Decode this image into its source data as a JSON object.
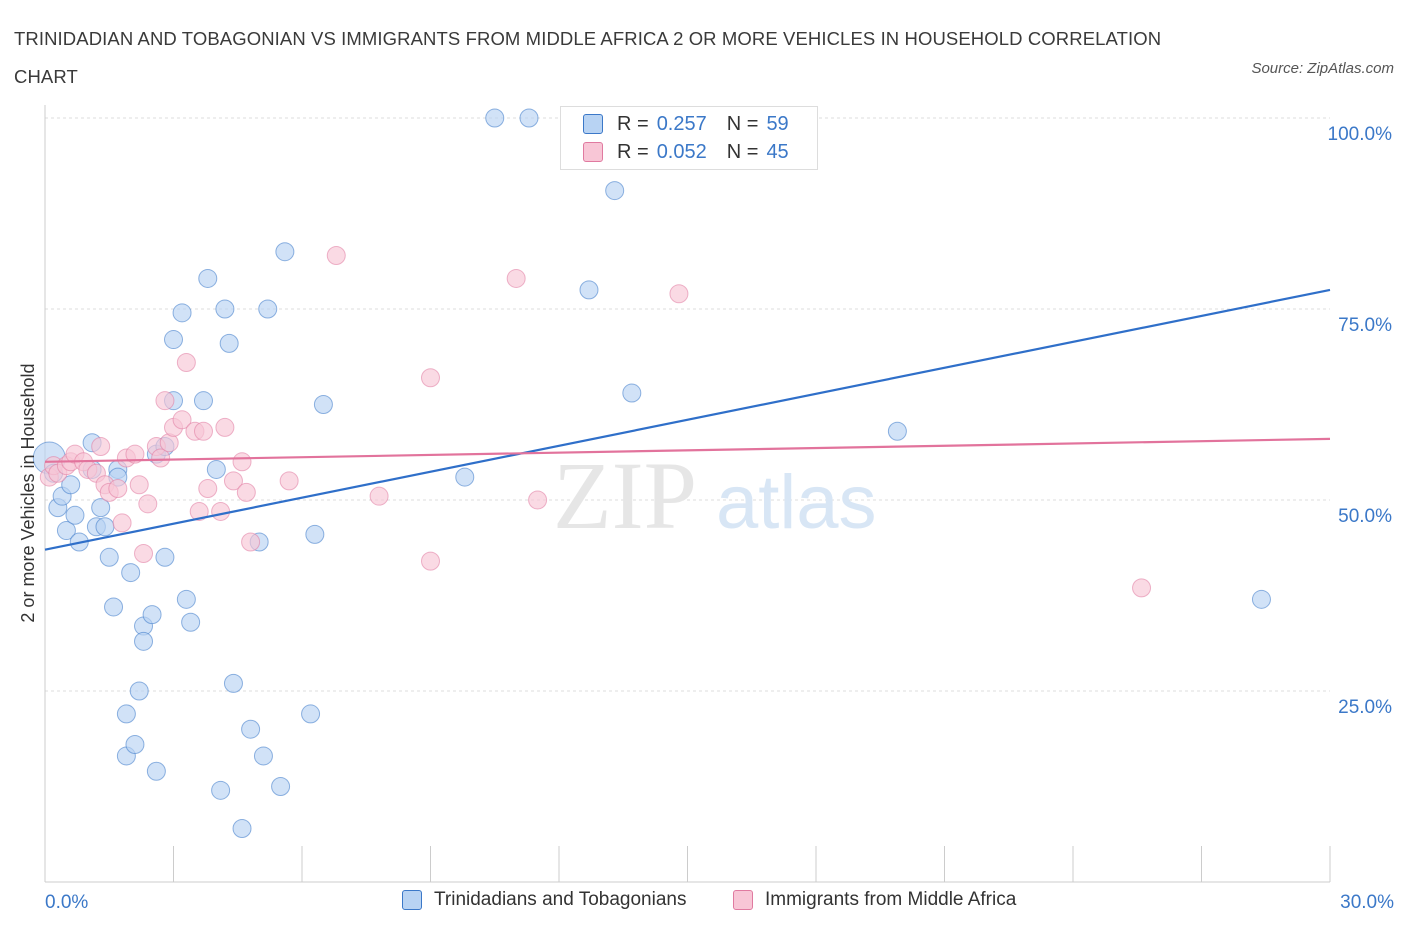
{
  "title": "TRINIDADIAN AND TOBAGONIAN VS IMMIGRANTS FROM MIDDLE AFRICA 2 OR MORE VEHICLES IN HOUSEHOLD CORRELATION CHART",
  "source": "Source: ZipAtlas.com",
  "watermark": {
    "zip": "ZIP",
    "atlas": "atlas"
  },
  "legend": {
    "r_label": "R =",
    "n_label": "N =",
    "series1": {
      "r": "0.257",
      "n": "59"
    },
    "series2": {
      "r": "0.052",
      "n": "45"
    }
  },
  "colors": {
    "blue": "#3b78c8",
    "blue_fill": "#b8d3f3",
    "pink": "#e07aa0",
    "pink_fill": "#f8c6d6",
    "grid": "#dddddd"
  },
  "chart_data": {
    "type": "scatter",
    "title": "TRINIDADIAN AND TOBAGONIAN VS IMMIGRANTS FROM MIDDLE AFRICA 2 OR MORE VEHICLES IN HOUSEHOLD CORRELATION CHART",
    "xlabel": "",
    "ylabel": "2 or more Vehicles in Household",
    "xlim": [
      0,
      30
    ],
    "ylim": [
      0,
      100
    ],
    "x_tick_labels": [
      "0.0%",
      "30.0%"
    ],
    "y_ticks": [
      25,
      50,
      75,
      100
    ],
    "y_tick_labels": [
      "25.0%",
      "50.0%",
      "75.0%",
      "100.0%"
    ],
    "grid": true,
    "series": [
      {
        "name": "Trinidadians and Tobagonians",
        "color": "#3b78c8",
        "trend": [
          [
            0,
            43.5
          ],
          [
            30,
            77.5
          ]
        ],
        "points": [
          [
            0.1,
            55.5
          ],
          [
            0.2,
            53.5
          ],
          [
            0.3,
            49.0
          ],
          [
            0.4,
            50.5
          ],
          [
            0.6,
            52.0
          ],
          [
            0.5,
            46.0
          ],
          [
            0.7,
            48.0
          ],
          [
            0.8,
            44.5
          ],
          [
            1.1,
            57.5
          ],
          [
            1.2,
            46.5
          ],
          [
            1.3,
            49.0
          ],
          [
            1.4,
            46.5
          ],
          [
            1.5,
            42.5
          ],
          [
            1.6,
            36.0
          ],
          [
            1.7,
            54.0
          ],
          [
            1.7,
            53.0
          ],
          [
            1.9,
            22.0
          ],
          [
            1.9,
            16.5
          ],
          [
            2.0,
            40.5
          ],
          [
            2.1,
            18.0
          ],
          [
            2.2,
            25.0
          ],
          [
            2.3,
            33.5
          ],
          [
            2.3,
            31.5
          ],
          [
            2.5,
            35.0
          ],
          [
            2.6,
            14.5
          ],
          [
            2.6,
            56.0
          ],
          [
            2.8,
            57.0
          ],
          [
            2.8,
            42.5
          ],
          [
            3.0,
            63.0
          ],
          [
            3.0,
            71.0
          ],
          [
            3.2,
            74.5
          ],
          [
            3.3,
            37.0
          ],
          [
            3.4,
            34.0
          ],
          [
            3.7,
            63.0
          ],
          [
            3.8,
            79.0
          ],
          [
            4.0,
            54.0
          ],
          [
            4.1,
            12.0
          ],
          [
            4.2,
            75.0
          ],
          [
            4.3,
            70.5
          ],
          [
            4.4,
            26.0
          ],
          [
            4.6,
            7.0
          ],
          [
            4.8,
            20.0
          ],
          [
            5.0,
            44.5
          ],
          [
            5.1,
            16.5
          ],
          [
            5.2,
            75.0
          ],
          [
            5.5,
            12.5
          ],
          [
            5.6,
            82.5
          ],
          [
            6.2,
            22.0
          ],
          [
            6.3,
            45.5
          ],
          [
            6.5,
            62.5
          ],
          [
            1.1,
            54.0
          ],
          [
            9.8,
            53.0
          ],
          [
            10.5,
            100.0
          ],
          [
            11.3,
            100.0
          ],
          [
            12.7,
            77.5
          ],
          [
            13.3,
            90.5
          ],
          [
            13.7,
            64.0
          ],
          [
            19.9,
            59.0
          ],
          [
            28.4,
            37.0
          ]
        ]
      },
      {
        "name": "Immigrants from Middle Africa",
        "color": "#e07aa0",
        "trend": [
          [
            0,
            55.0
          ],
          [
            30,
            58.0
          ]
        ],
        "points": [
          [
            0.1,
            53.0
          ],
          [
            0.2,
            54.5
          ],
          [
            0.3,
            53.5
          ],
          [
            0.5,
            54.5
          ],
          [
            0.6,
            55.0
          ],
          [
            0.7,
            56.0
          ],
          [
            0.9,
            55.0
          ],
          [
            1.0,
            54.0
          ],
          [
            1.2,
            53.5
          ],
          [
            1.3,
            57.0
          ],
          [
            1.4,
            52.0
          ],
          [
            1.5,
            51.0
          ],
          [
            1.7,
            51.5
          ],
          [
            1.8,
            47.0
          ],
          [
            1.9,
            55.5
          ],
          [
            2.1,
            56.0
          ],
          [
            2.2,
            52.0
          ],
          [
            2.3,
            43.0
          ],
          [
            2.4,
            49.5
          ],
          [
            2.6,
            57.0
          ],
          [
            2.7,
            55.5
          ],
          [
            2.8,
            63.0
          ],
          [
            2.9,
            57.5
          ],
          [
            3.0,
            59.5
          ],
          [
            3.2,
            60.5
          ],
          [
            3.3,
            68.0
          ],
          [
            3.5,
            59.0
          ],
          [
            3.6,
            48.5
          ],
          [
            3.7,
            59.0
          ],
          [
            3.8,
            51.5
          ],
          [
            4.1,
            48.5
          ],
          [
            4.2,
            59.5
          ],
          [
            4.4,
            52.5
          ],
          [
            4.6,
            55.0
          ],
          [
            4.7,
            51.0
          ],
          [
            4.8,
            44.5
          ],
          [
            5.7,
            52.5
          ],
          [
            6.8,
            82.0
          ],
          [
            7.8,
            50.5
          ],
          [
            9.0,
            66.0
          ],
          [
            9.0,
            42.0
          ],
          [
            11.0,
            79.0
          ],
          [
            11.5,
            50.0
          ],
          [
            14.8,
            77.0
          ],
          [
            25.6,
            38.5
          ]
        ]
      }
    ]
  },
  "bottom_legend": {
    "item1": "Trinidadians and Tobagonians",
    "item2": "Immigrants from Middle Africa"
  }
}
